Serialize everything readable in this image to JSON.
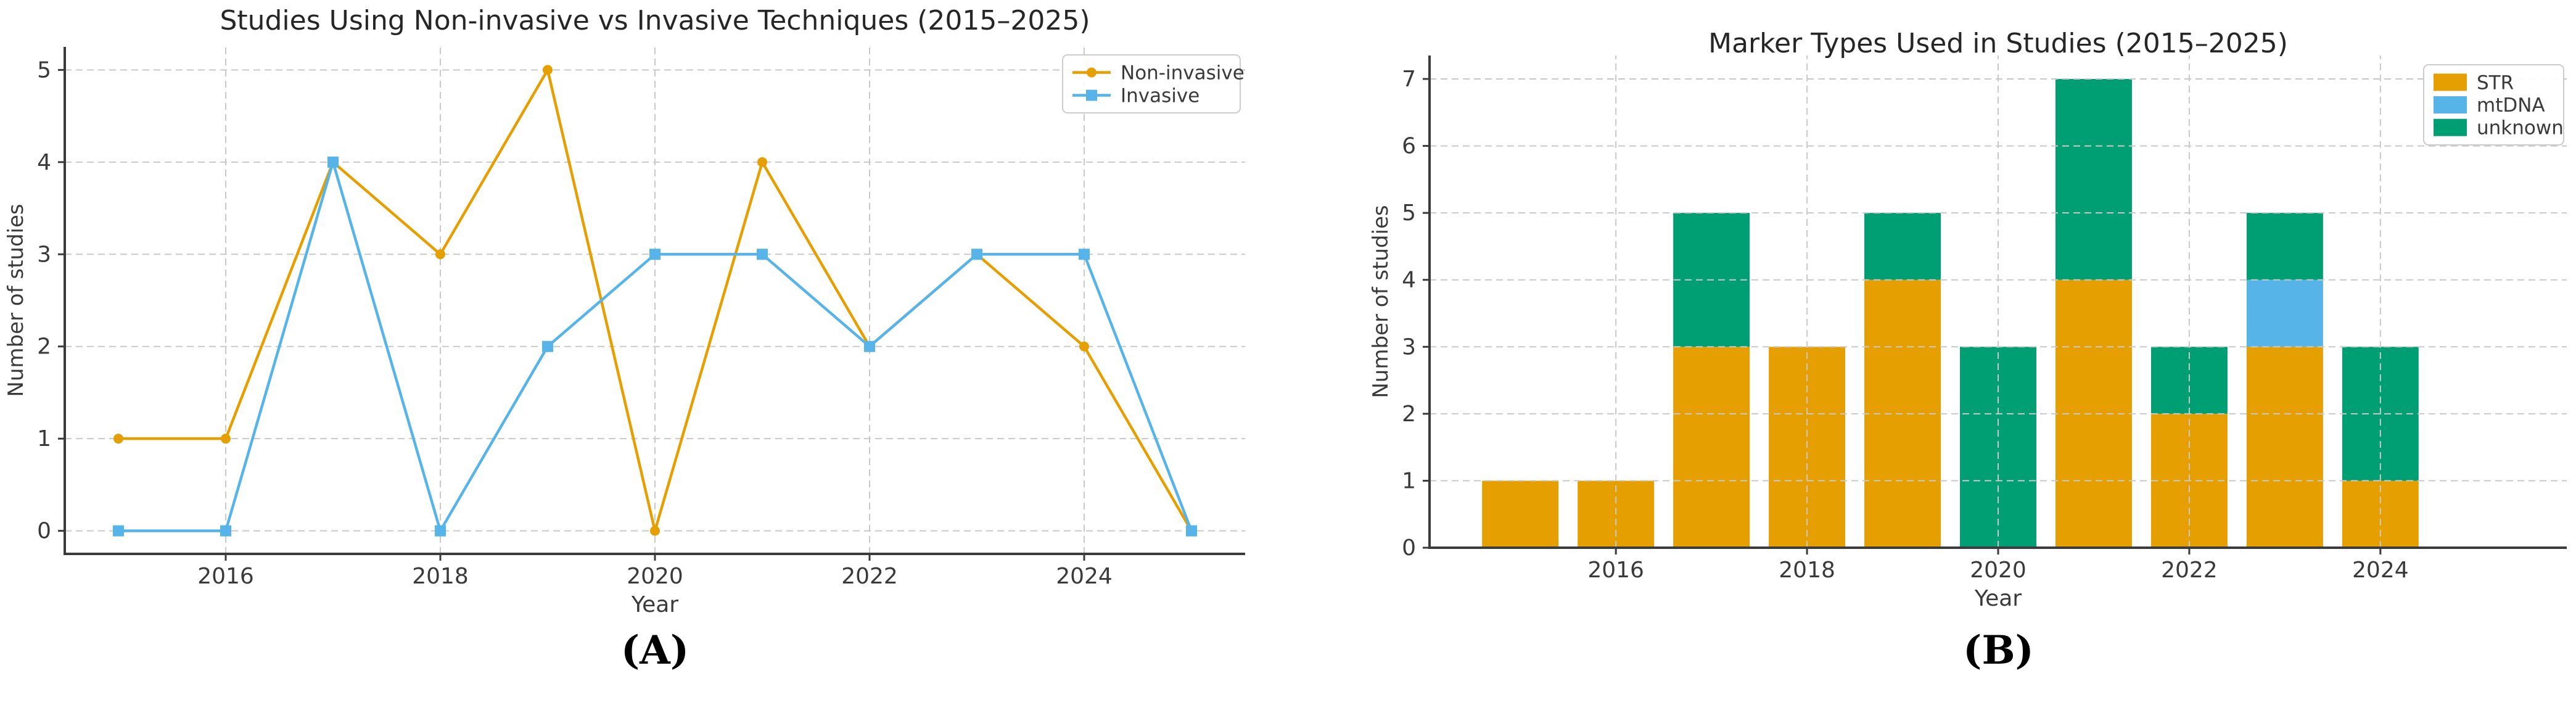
{
  "figure": {
    "background": "#ffffff",
    "caption_a": "(A)",
    "caption_b": "(B)"
  },
  "colors": {
    "orange": "#E69F00",
    "sky_blue": "#56B4E9",
    "green": "#009E73"
  },
  "chart_data": [
    {
      "type": "line",
      "caption": "(A)",
      "title": "Studies Using Non-invasive vs Invasive Techniques (2015–2025)",
      "xlabel": "Year",
      "ylabel": "Number of studies",
      "x": [
        2015,
        2016,
        2017,
        2018,
        2019,
        2020,
        2021,
        2022,
        2023,
        2024,
        2025
      ],
      "series": [
        {
          "name": "Non-invasive",
          "color": "#E69F00",
          "marker": "circle",
          "values": [
            1,
            1,
            4,
            3,
            5,
            0,
            4,
            2,
            3,
            2,
            0
          ]
        },
        {
          "name": "Invasive",
          "color": "#56B4E9",
          "marker": "square",
          "values": [
            0,
            0,
            4,
            0,
            2,
            3,
            3,
            2,
            3,
            3,
            0
          ]
        }
      ],
      "xticks": [
        2016,
        2018,
        2020,
        2022,
        2024
      ],
      "yticks": [
        0,
        1,
        2,
        3,
        4,
        5
      ],
      "xlim": [
        2014.5,
        2025.5
      ],
      "ylim": [
        -0.25,
        5.25
      ],
      "grid": true,
      "grid_above_data": false,
      "legend_position": "upper right",
      "legend_style": "line"
    },
    {
      "type": "stacked_bar",
      "caption": "(B)",
      "title": "Marker Types Used in Studies (2015–2025)",
      "xlabel": "Year",
      "ylabel": "Number of studies",
      "x": [
        2015,
        2016,
        2017,
        2018,
        2019,
        2020,
        2021,
        2022,
        2023,
        2024
      ],
      "series": [
        {
          "name": "STR",
          "color": "#E69F00",
          "values": [
            1,
            1,
            3,
            3,
            4,
            0,
            4,
            2,
            3,
            1
          ]
        },
        {
          "name": "mtDNA",
          "color": "#56B4E9",
          "values": [
            0,
            0,
            0,
            0,
            0,
            0,
            0,
            0,
            1,
            0
          ]
        },
        {
          "name": "unknown",
          "color": "#009E73",
          "values": [
            0,
            0,
            2,
            0,
            1,
            3,
            3,
            1,
            1,
            2
          ]
        }
      ],
      "totals": [
        1,
        1,
        5,
        3,
        5,
        3,
        7,
        3,
        5,
        3
      ],
      "xticks": [
        2016,
        2018,
        2020,
        2022,
        2024
      ],
      "yticks": [
        0,
        1,
        2,
        3,
        4,
        5,
        6,
        7
      ],
      "xlim": [
        2014.05,
        2025.95
      ],
      "ylim": [
        0,
        7.35
      ],
      "bar_width": 0.8,
      "grid": true,
      "grid_above_data": true,
      "legend_position": "upper right",
      "legend_style": "swatch"
    }
  ]
}
